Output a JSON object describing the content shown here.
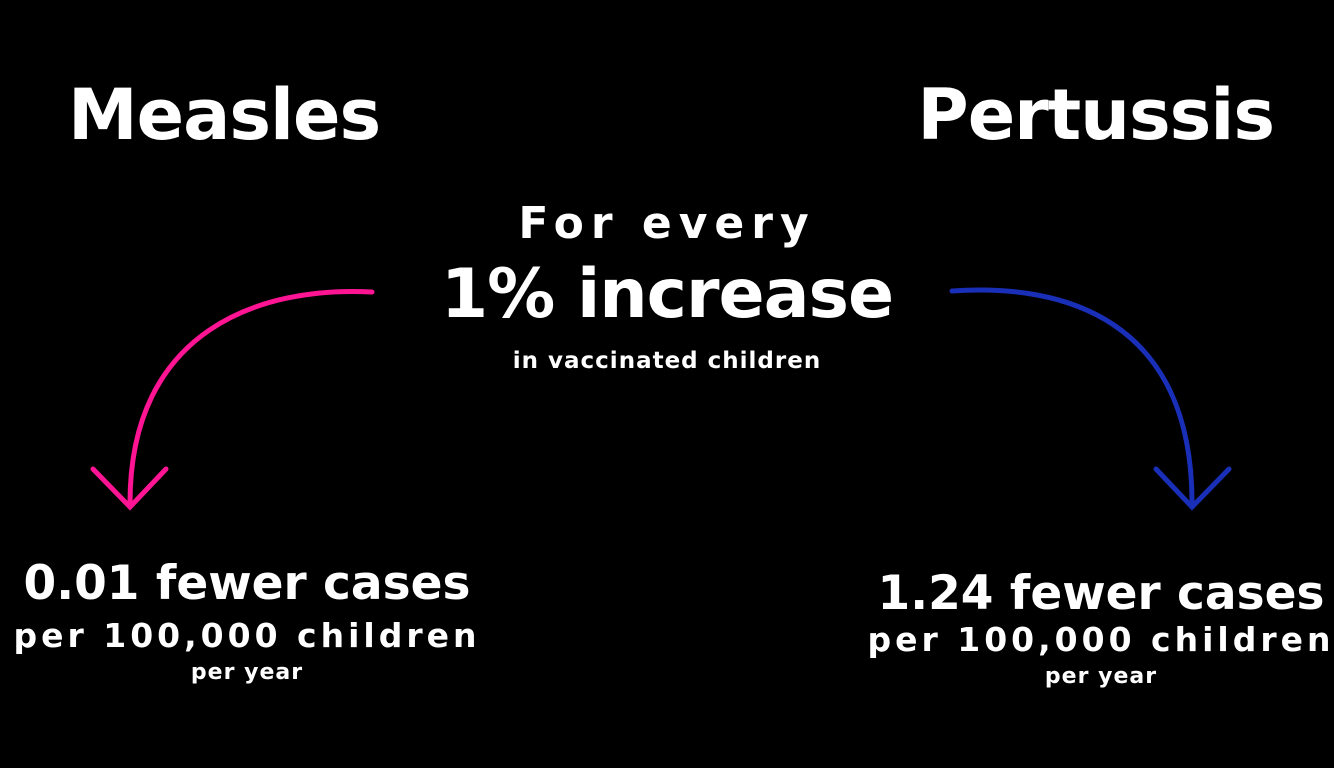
{
  "colors": {
    "background": "#000000",
    "text": "#ffffff",
    "measles_arrow": "#ff1493",
    "pertussis_arrow": "#1a2fb8"
  },
  "headers": {
    "left": "Measles",
    "right": "Pertussis"
  },
  "center": {
    "line1": "For every",
    "line2": "1% increase",
    "line3": "in vaccinated children"
  },
  "results": {
    "measles": {
      "fewer": "0.01 fewer cases",
      "per_children": "per 100,000 children",
      "per_year": "per year"
    },
    "pertussis": {
      "fewer": "1.24 fewer cases",
      "per_children": "per 100,000 children",
      "per_year": "per year"
    }
  }
}
